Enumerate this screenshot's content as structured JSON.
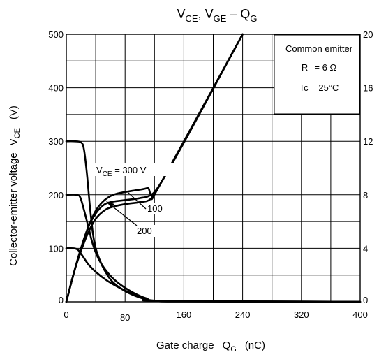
{
  "chart_data": {
    "type": "line",
    "title_parts": [
      "V",
      "CE",
      ", V",
      "GE",
      " – Q",
      "G"
    ],
    "ylabel_left": "Collector-emitter voltage",
    "ylabel_left_sym": "V",
    "ylabel_left_sub": "CE",
    "ylabel_left_unit": "(V)",
    "xlabel": "Gate charge",
    "xlabel_sym": "Q",
    "xlabel_sub": "G",
    "xlabel_unit": "(nC)",
    "xlim": [
      0,
      400
    ],
    "ylim_left": [
      0,
      500
    ],
    "ylim_right": [
      0,
      20
    ],
    "x_ticks": [
      "0",
      "80",
      "160",
      "240",
      "320",
      "400"
    ],
    "y_ticks_left": [
      "0",
      "100",
      "200",
      "300",
      "400",
      "500"
    ],
    "y_ticks_right": [
      "0",
      "4",
      "8",
      "12",
      "16",
      "20"
    ],
    "grid": true,
    "conditions": {
      "line1": "Common emitter",
      "line2_sym": "R",
      "line2_sub": "L",
      "line2_rest": " = 6 Ω",
      "line3": "Tc = 25°C"
    },
    "annotations": {
      "vce300_sym": "V",
      "vce300_sub": "CE",
      "vce300_rest": " = 300 V",
      "label_100": "100",
      "label_200": "200"
    },
    "series": [
      {
        "name": "V",
        "axis": "left",
        "points": [
          [
            0,
            300
          ],
          [
            10,
            300
          ],
          [
            20,
            298
          ],
          [
            24,
            285
          ],
          [
            28,
            240
          ],
          [
            32,
            180
          ],
          [
            36,
            130
          ],
          [
            40,
            100
          ],
          [
            48,
            70
          ],
          [
            56,
            50
          ],
          [
            64,
            36
          ],
          [
            80,
            20
          ],
          [
            100,
            8
          ],
          [
            120,
            2
          ],
          [
            160,
            0.5
          ],
          [
            400,
            0
          ]
        ]
      },
      {
        "name": "V",
        "axis": "left",
        "points": [
          [
            0,
            200
          ],
          [
            14,
            200
          ],
          [
            19,
            195
          ],
          [
            24,
            172
          ],
          [
            30,
            140
          ],
          [
            36,
            108
          ],
          [
            44,
            80
          ],
          [
            56,
            55
          ],
          [
            70,
            36
          ],
          [
            90,
            18
          ],
          [
            110,
            6
          ],
          [
            130,
            2
          ],
          [
            400,
            0
          ]
        ]
      },
      {
        "name": "V",
        "axis": "left",
        "points": [
          [
            0,
            100
          ],
          [
            10,
            100
          ],
          [
            16,
            97
          ],
          [
            22,
            86
          ],
          [
            30,
            70
          ],
          [
            40,
            56
          ],
          [
            55,
            40
          ],
          [
            70,
            28
          ],
          [
            90,
            15
          ],
          [
            110,
            5
          ],
          [
            130,
            2
          ],
          [
            400,
            0
          ]
        ]
      },
      {
        "name": "V",
        "axis": "right",
        "points": [
          [
            0,
            0
          ],
          [
            10,
            2.1
          ],
          [
            20,
            4.0
          ],
          [
            30,
            5.6
          ],
          [
            40,
            6.8
          ],
          [
            50,
            7.5
          ],
          [
            60,
            7.9
          ],
          [
            70,
            8.1
          ],
          [
            90,
            8.3
          ],
          [
            110,
            8.5
          ],
          [
            130,
            9.0
          ],
          [
            240,
            20
          ]
        ]
      },
      {
        "name": "V",
        "axis": "right",
        "points": [
          [
            0,
            0
          ],
          [
            10,
            2.1
          ],
          [
            20,
            4.0
          ],
          [
            30,
            5.6
          ],
          [
            40,
            6.6
          ],
          [
            50,
            7.2
          ],
          [
            60,
            7.45
          ],
          [
            80,
            7.6
          ],
          [
            100,
            7.75
          ],
          [
            115,
            8.0
          ],
          [
            130,
            9.0
          ],
          [
            240,
            20
          ]
        ]
      },
      {
        "name": "V",
        "axis": "right",
        "points": [
          [
            0,
            0
          ],
          [
            10,
            2.1
          ],
          [
            20,
            3.8
          ],
          [
            30,
            5.2
          ],
          [
            40,
            6.2
          ],
          [
            50,
            6.75
          ],
          [
            60,
            7.05
          ],
          [
            80,
            7.3
          ],
          [
            100,
            7.45
          ],
          [
            115,
            7.7
          ],
          [
            130,
            9.0
          ],
          [
            240,
            20
          ]
        ]
      }
    ]
  }
}
